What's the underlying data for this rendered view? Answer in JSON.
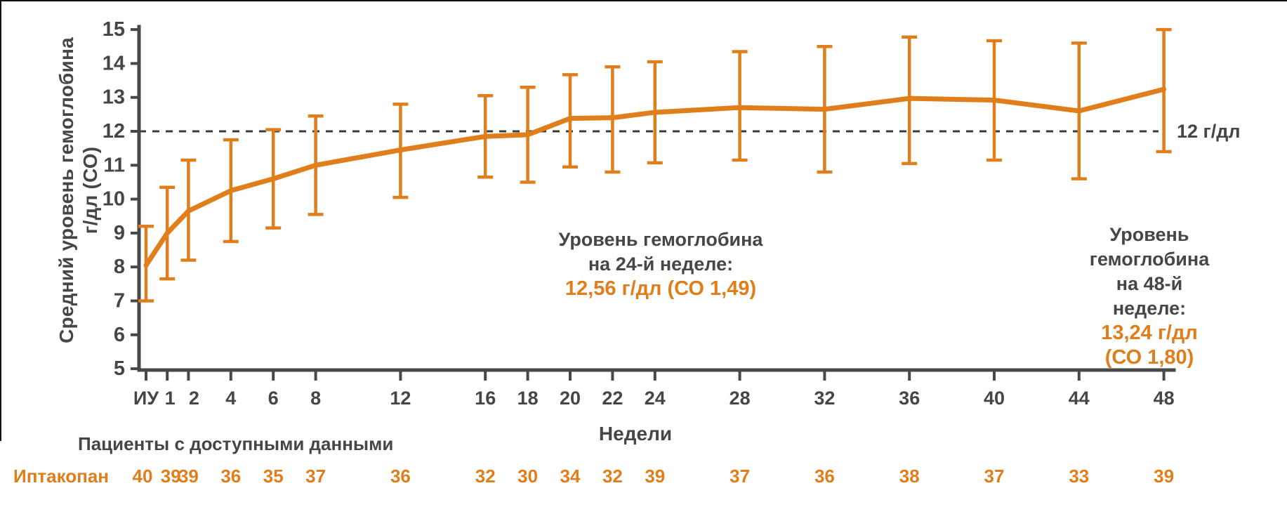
{
  "colors": {
    "orange": "#E07E1C",
    "dark_text": "#46464A",
    "axis": "#48484B",
    "dashed_line": "#3C3C40",
    "edge_border": "#111111"
  },
  "y_axis": {
    "title_line1": "Средний уровень гемоглобина",
    "title_line2": "г/дл (СО)",
    "min": 5,
    "max": 15,
    "tick_labels": [
      "15",
      "14",
      "13",
      "12",
      "11",
      "10",
      "9",
      "8",
      "7",
      "6",
      "5"
    ]
  },
  "x_axis": {
    "title": "Недели",
    "tick_labels": [
      "ИУ",
      "1",
      "2",
      "4",
      "6",
      "8",
      "12",
      "16",
      "18",
      "20",
      "22",
      "24",
      "28",
      "32",
      "36",
      "40",
      "44",
      "48"
    ]
  },
  "reference_line": {
    "value": 12,
    "label": "12 г/дл"
  },
  "annotations": [
    {
      "line1": "Уровень гемоглобина",
      "line2": "на 24-й неделе:",
      "value_text": "12,56 г/дл (СО 1,49)"
    },
    {
      "line1": "Уровень гемоглобина",
      "line2": "на 48-й неделе:",
      "value_text": "13,24 г/дл (СО 1,80)"
    }
  ],
  "patients_row": {
    "header": "Пациенты с доступными данными",
    "series_label": "Иптакопан"
  },
  "chart_data": {
    "type": "line",
    "title": "",
    "xlabel": "Недели",
    "ylabel": "Средний уровень гемоглобина г/дл (СО)",
    "ylim": [
      5,
      15
    ],
    "y_ticks": [
      5,
      6,
      7,
      8,
      9,
      10,
      11,
      12,
      13,
      14,
      15
    ],
    "reference_line_y": 12,
    "reference_line_label": "12 г/дл",
    "x_weeks": [
      0,
      1,
      2,
      4,
      6,
      8,
      12,
      16,
      18,
      20,
      22,
      24,
      28,
      32,
      36,
      40,
      44,
      48
    ],
    "x_tick_labels": [
      "ИУ",
      "1",
      "2",
      "4",
      "6",
      "8",
      "12",
      "16",
      "18",
      "20",
      "22",
      "24",
      "28",
      "32",
      "36",
      "40",
      "44",
      "48"
    ],
    "series": [
      {
        "name": "Иптакопан",
        "mean": [
          8.05,
          9.0,
          9.65,
          10.25,
          10.6,
          11.0,
          11.45,
          11.85,
          11.9,
          12.38,
          12.4,
          12.56,
          12.7,
          12.65,
          12.97,
          12.92,
          12.6,
          13.24
        ],
        "err_low": [
          7.0,
          7.65,
          8.2,
          8.75,
          9.15,
          9.55,
          10.05,
          10.65,
          10.5,
          10.95,
          10.8,
          11.07,
          11.15,
          10.8,
          11.05,
          11.15,
          10.6,
          11.4
        ],
        "err_high": [
          9.2,
          10.35,
          11.15,
          11.75,
          12.05,
          12.45,
          12.8,
          13.05,
          13.3,
          13.67,
          13.9,
          14.05,
          14.35,
          14.5,
          14.78,
          14.67,
          14.6,
          15.0
        ]
      }
    ],
    "patients_available": {
      "label": "Иптакопан",
      "counts": [
        40,
        39,
        39,
        36,
        35,
        37,
        36,
        32,
        30,
        34,
        32,
        39,
        37,
        36,
        38,
        37,
        33,
        39
      ]
    },
    "annotations": [
      {
        "week": 24,
        "text": "Уровень гемоглобина на 24-й неделе: 12,56 г/дл (СО 1,49)"
      },
      {
        "week": 48,
        "text": "Уровень гемоглобина на 48-й неделе: 13,24 г/дл (СО 1,80)"
      }
    ],
    "legend_position": "none",
    "grid": false
  }
}
